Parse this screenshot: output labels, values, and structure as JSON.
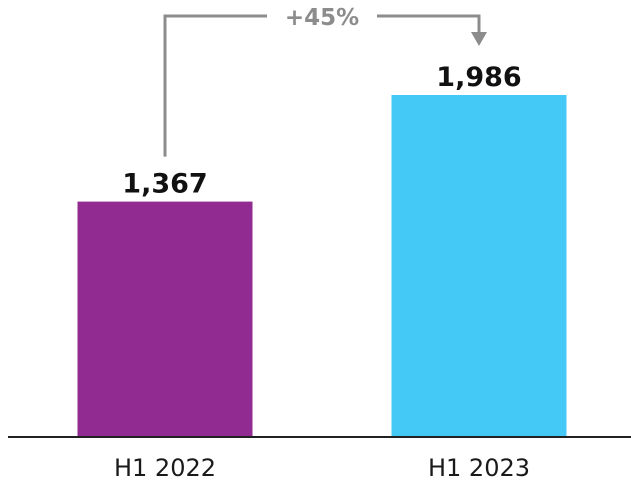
{
  "chart_data": {
    "type": "bar",
    "categories": [
      "H1 2022",
      "H1 2023"
    ],
    "values": [
      1367,
      1986
    ],
    "value_labels": [
      "1,367",
      "1,986"
    ],
    "colors": [
      "#922b91",
      "#44c8f5"
    ],
    "change_label": "+45%",
    "title": "",
    "xlabel": "",
    "ylabel": "",
    "grid": false,
    "legend": "none"
  },
  "colors": {
    "axis": "#222222",
    "connector": "#8c8c8c"
  }
}
